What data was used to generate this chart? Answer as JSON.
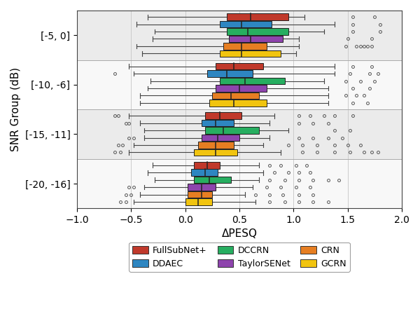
{
  "snr_groups": [
    "[-5, 0]",
    "[-10, -6]",
    "[-15, -11]",
    "[-20, -16]"
  ],
  "models": [
    "FullSubNet+",
    "DDAEC",
    "DCCRN",
    "TaylorSENet",
    "CRN",
    "GCRN"
  ],
  "colors": [
    "#c0392b",
    "#2e86c1",
    "#27ae60",
    "#8e44ad",
    "#e67e22",
    "#f1c40f"
  ],
  "ylabel": "SNR Group (dB)",
  "xlabel": "ΔPESQ",
  "xlim": [
    -1.0,
    2.0
  ],
  "box_data": {
    "[-5, 0]": {
      "FullSubNet+": {
        "whislo": -0.35,
        "q1": 0.38,
        "med": 0.6,
        "q3": 0.95,
        "whishi": 1.1,
        "fliers_low": [],
        "fliers_high": [
          1.55,
          1.75
        ]
      },
      "DDAEC": {
        "whislo": -0.45,
        "q1": 0.32,
        "med": 0.52,
        "q3": 0.8,
        "whishi": 1.38,
        "fliers_low": [],
        "fliers_high": [
          1.55,
          1.8
        ]
      },
      "DCCRN": {
        "whislo": -0.28,
        "q1": 0.38,
        "med": 0.58,
        "q3": 0.95,
        "whishi": 1.28,
        "fliers_low": [],
        "fliers_high": [
          1.55,
          1.8
        ]
      },
      "TaylorSENet": {
        "whislo": -0.3,
        "q1": 0.4,
        "med": 0.6,
        "q3": 0.9,
        "whishi": 1.05,
        "fliers_low": [],
        "fliers_high": [
          1.5,
          1.72
        ]
      },
      "CRN": {
        "whislo": -0.45,
        "q1": 0.35,
        "med": 0.52,
        "q3": 0.75,
        "whishi": 1.05,
        "fliers_low": [],
        "fliers_high": [
          1.48,
          1.58,
          1.62,
          1.65,
          1.68,
          1.72
        ]
      },
      "GCRN": {
        "whislo": -0.4,
        "q1": 0.32,
        "med": 0.52,
        "q3": 0.88,
        "whishi": 1.02,
        "fliers_low": [],
        "fliers_high": []
      }
    },
    "[-10, -6]": {
      "FullSubNet+": {
        "whislo": -0.52,
        "q1": 0.28,
        "med": 0.45,
        "q3": 0.72,
        "whishi": 1.38,
        "fliers_low": [],
        "fliers_high": [
          1.55,
          1.72
        ]
      },
      "DDAEC": {
        "whislo": -0.48,
        "q1": 0.2,
        "med": 0.38,
        "q3": 0.62,
        "whishi": 1.38,
        "fliers_low": [
          -0.65
        ],
        "fliers_high": [
          1.52,
          1.7,
          1.78
        ]
      },
      "DCCRN": {
        "whislo": -0.32,
        "q1": 0.32,
        "med": 0.55,
        "q3": 0.92,
        "whishi": 1.28,
        "fliers_low": [],
        "fliers_high": [
          1.48,
          1.62,
          1.75
        ]
      },
      "TaylorSENet": {
        "whislo": -0.35,
        "q1": 0.28,
        "med": 0.5,
        "q3": 0.75,
        "whishi": 1.32,
        "fliers_low": [],
        "fliers_high": [
          1.55,
          1.7
        ]
      },
      "CRN": {
        "whislo": -0.42,
        "q1": 0.25,
        "med": 0.42,
        "q3": 0.68,
        "whishi": 1.32,
        "fliers_low": [],
        "fliers_high": [
          1.48,
          1.58,
          1.65
        ]
      },
      "GCRN": {
        "whislo": -0.42,
        "q1": 0.22,
        "med": 0.45,
        "q3": 0.75,
        "whishi": 1.32,
        "fliers_low": [],
        "fliers_high": [
          1.55,
          1.68
        ]
      }
    },
    "[-15, -11]": {
      "FullSubNet+": {
        "whislo": -0.52,
        "q1": 0.18,
        "med": 0.32,
        "q3": 0.52,
        "whishi": 0.82,
        "fliers_low": [
          -0.65,
          -0.62
        ],
        "fliers_high": [
          1.05,
          1.15,
          1.28,
          1.38,
          1.55
        ]
      },
      "DDAEC": {
        "whislo": -0.42,
        "q1": 0.15,
        "med": 0.28,
        "q3": 0.45,
        "whishi": 0.78,
        "fliers_low": [
          -0.55,
          -0.52
        ],
        "fliers_high": [
          1.05,
          1.18,
          1.32
        ]
      },
      "DCCRN": {
        "whislo": -0.38,
        "q1": 0.18,
        "med": 0.35,
        "q3": 0.68,
        "whishi": 0.95,
        "fliers_low": [],
        "fliers_high": [
          1.38,
          1.52
        ]
      },
      "TaylorSENet": {
        "whislo": -0.38,
        "q1": 0.15,
        "med": 0.3,
        "q3": 0.5,
        "whishi": 0.78,
        "fliers_low": [
          -0.52,
          -0.48
        ],
        "fliers_high": [
          1.05,
          1.18,
          1.32,
          1.45
        ]
      },
      "CRN": {
        "whislo": -0.48,
        "q1": 0.12,
        "med": 0.28,
        "q3": 0.45,
        "whishi": 0.72,
        "fliers_low": [
          -0.62,
          -0.58
        ],
        "fliers_high": [
          0.95,
          1.08,
          1.22,
          1.38,
          1.5,
          1.62
        ]
      },
      "GCRN": {
        "whislo": -0.52,
        "q1": 0.08,
        "med": 0.28,
        "q3": 0.48,
        "whishi": 0.88,
        "fliers_low": [
          -0.65,
          -0.6
        ],
        "fliers_high": [
          1.08,
          1.22,
          1.38,
          1.52,
          1.65,
          1.72,
          1.78
        ]
      }
    },
    "[-20, -16]": {
      "FullSubNet+": {
        "whislo": -0.3,
        "q1": 0.08,
        "med": 0.2,
        "q3": 0.32,
        "whishi": 0.68,
        "fliers_low": [],
        "fliers_high": [
          0.78,
          0.88,
          1.02,
          1.12
        ]
      },
      "DDAEC": {
        "whislo": -0.35,
        "q1": 0.05,
        "med": 0.18,
        "q3": 0.3,
        "whishi": 0.72,
        "fliers_low": [],
        "fliers_high": [
          0.82,
          0.95,
          1.05,
          1.15
        ]
      },
      "DCCRN": {
        "whislo": -0.28,
        "q1": 0.08,
        "med": 0.22,
        "q3": 0.42,
        "whishi": 0.68,
        "fliers_low": [],
        "fliers_high": [
          0.78,
          0.92,
          1.05,
          1.18,
          1.32,
          1.42
        ]
      },
      "TaylorSENet": {
        "whislo": -0.38,
        "q1": 0.02,
        "med": 0.15,
        "q3": 0.28,
        "whishi": 0.62,
        "fliers_low": [
          -0.52,
          -0.48
        ],
        "fliers_high": [
          0.75,
          0.88,
          1.02,
          1.15
        ]
      },
      "CRN": {
        "whislo": -0.42,
        "q1": 0.02,
        "med": 0.15,
        "q3": 0.25,
        "whishi": 0.55,
        "fliers_low": [
          -0.55,
          -0.5
        ],
        "fliers_high": [
          0.65,
          0.78,
          0.9,
          1.05,
          1.18
        ]
      },
      "GCRN": {
        "whislo": -0.48,
        "q1": 0.0,
        "med": 0.12,
        "q3": 0.25,
        "whishi": 0.65,
        "fliers_low": [
          -0.6,
          -0.55
        ],
        "fliers_high": [
          0.78,
          0.92,
          1.05,
          1.18,
          1.32
        ]
      }
    }
  },
  "legend": [
    {
      "label": "FullSubNet+",
      "color": "#c0392b"
    },
    {
      "label": "DDAEC",
      "color": "#2e86c1"
    },
    {
      "label": "DCCRN",
      "color": "#27ae60"
    },
    {
      "label": "TaylorSENet",
      "color": "#8e44ad"
    },
    {
      "label": "CRN",
      "color": "#e67e22"
    },
    {
      "label": "GCRN",
      "color": "#f1c40f"
    }
  ],
  "bg_color_odd": "#ebebeb",
  "bg_color_even": "#f8f8f8"
}
